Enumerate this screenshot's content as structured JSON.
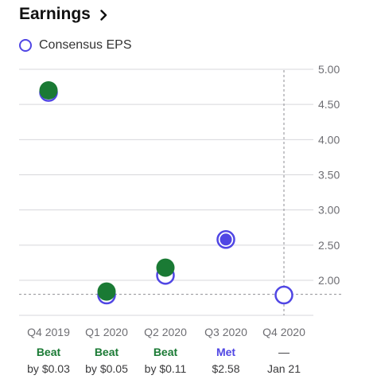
{
  "header": {
    "title": "Earnings",
    "chevron_icon": "chevron-right-icon"
  },
  "legend": {
    "label": "Consensus EPS",
    "icon": "ring-icon",
    "color": "#5046e4"
  },
  "colors": {
    "estimate": "#5046e4",
    "actual": "#1a7a34",
    "beat_text": "#1a7a34",
    "met_text": "#5046e4",
    "neutral_text": "#3a3a3c"
  },
  "chart_data": {
    "type": "scatter",
    "ylim": [
      1.6,
      5.0
    ],
    "yticks": [
      "5.00",
      "4.50",
      "4.00",
      "3.50",
      "3.00",
      "2.50",
      "2.00"
    ],
    "ytick_values": [
      5.0,
      4.5,
      4.0,
      3.5,
      3.0,
      2.5,
      2.0
    ],
    "reference_line": 1.8,
    "categories": [
      "Q4 2019",
      "Q1 2020",
      "Q2 2020",
      "Q3 2020",
      "Q4 2020"
    ],
    "series": [
      {
        "name": "Consensus EPS",
        "values": [
          4.67,
          1.79,
          2.07,
          2.58,
          1.79
        ]
      },
      {
        "values": [
          4.7,
          1.84,
          2.18,
          2.58,
          null
        ]
      }
    ],
    "results": [
      {
        "status": "Beat",
        "detail": "by $0.03",
        "kind": "beat"
      },
      {
        "status": "Beat",
        "detail": "by $0.05",
        "kind": "beat"
      },
      {
        "status": "Beat",
        "detail": "by $0.11",
        "kind": "beat"
      },
      {
        "status": "Met",
        "detail": "$2.58",
        "kind": "met"
      },
      {
        "status": "—",
        "detail": "Jan 21",
        "kind": "upcoming"
      }
    ]
  }
}
